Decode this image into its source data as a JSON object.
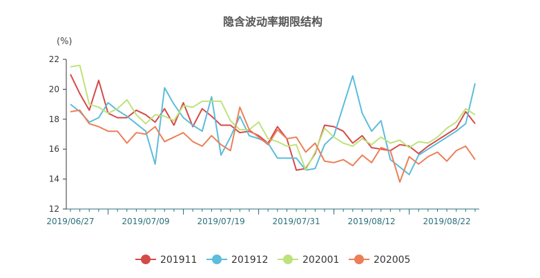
{
  "chart_data": {
    "type": "line",
    "title": "隐含波动率期限结构",
    "y_unit": "(%)",
    "ylim": [
      12,
      22
    ],
    "y_ticks": [
      12,
      14,
      16,
      18,
      20,
      22
    ],
    "grid": false,
    "legend_position": "bottom-center",
    "x_tick_labels": [
      {
        "label": "2019/06/27",
        "index": 0
      },
      {
        "label": "2019/07/09",
        "index": 8
      },
      {
        "label": "2019/07/19",
        "index": 16
      },
      {
        "label": "2019/07/31",
        "index": 24
      },
      {
        "label": "2019/08/12",
        "index": 32
      },
      {
        "label": "2019/08/22",
        "index": 40
      }
    ],
    "x": [
      "2019/06/27",
      "2019/06/28",
      "2019/07/01",
      "2019/07/02",
      "2019/07/03",
      "2019/07/04",
      "2019/07/05",
      "2019/07/08",
      "2019/07/09",
      "2019/07/10",
      "2019/07/11",
      "2019/07/12",
      "2019/07/15",
      "2019/07/16",
      "2019/07/17",
      "2019/07/18",
      "2019/07/19",
      "2019/07/22",
      "2019/07/23",
      "2019/07/24",
      "2019/07/25",
      "2019/07/26",
      "2019/07/29",
      "2019/07/30",
      "2019/07/31",
      "2019/08/01",
      "2019/08/02",
      "2019/08/05",
      "2019/08/06",
      "2019/08/07",
      "2019/08/08",
      "2019/08/09",
      "2019/08/12",
      "2019/08/13",
      "2019/08/14",
      "2019/08/15",
      "2019/08/16",
      "2019/08/19",
      "2019/08/20",
      "2019/08/21",
      "2019/08/22",
      "2019/08/23",
      "2019/08/26",
      "2019/08/27"
    ],
    "series": [
      {
        "name": "201911",
        "color": "#d34a48",
        "values": [
          21.0,
          19.7,
          18.6,
          20.6,
          18.4,
          18.1,
          18.1,
          18.6,
          18.3,
          17.8,
          18.7,
          17.6,
          19.1,
          17.5,
          18.7,
          18.2,
          17.6,
          17.6,
          17.1,
          17.2,
          16.9,
          16.4,
          17.5,
          16.7,
          14.6,
          14.7,
          15.7,
          17.6,
          17.5,
          17.2,
          16.4,
          16.9,
          16.1,
          16.0,
          15.9,
          16.3,
          16.2,
          15.7,
          16.2,
          16.6,
          17.0,
          17.4,
          18.5,
          17.7
        ]
      },
      {
        "name": "201912",
        "color": "#5bbcdb",
        "values": [
          19.0,
          18.5,
          17.8,
          18.1,
          19.1,
          18.6,
          18.2,
          17.7,
          17.2,
          15.0,
          20.1,
          19.0,
          18.1,
          17.6,
          17.2,
          19.5,
          15.6,
          16.8,
          18.2,
          16.9,
          16.7,
          16.4,
          15.4,
          15.4,
          15.4,
          14.6,
          14.7,
          16.3,
          16.9,
          18.9,
          20.9,
          18.4,
          17.2,
          17.9,
          15.3,
          14.8,
          14.3,
          15.6,
          16.0,
          16.4,
          16.8,
          17.2,
          17.7,
          20.4
        ]
      },
      {
        "name": "202001",
        "color": "#bde27a",
        "values": [
          21.5,
          21.6,
          19.0,
          18.8,
          18.4,
          18.7,
          19.3,
          18.3,
          17.7,
          18.3,
          18.2,
          17.9,
          18.9,
          18.8,
          19.2,
          19.2,
          19.2,
          17.9,
          17.3,
          17.3,
          17.8,
          16.7,
          16.5,
          16.2,
          16.3,
          14.6,
          15.8,
          17.4,
          16.8,
          16.4,
          16.2,
          16.7,
          16.3,
          16.8,
          16.4,
          16.6,
          16.1,
          16.5,
          16.4,
          16.8,
          17.4,
          17.8,
          18.7,
          18.3
        ]
      },
      {
        "name": "202005",
        "color": "#ec7e57",
        "values": [
          18.5,
          18.6,
          17.7,
          17.5,
          17.2,
          17.2,
          16.4,
          17.1,
          17.0,
          17.5,
          16.5,
          16.8,
          17.1,
          16.5,
          16.2,
          16.9,
          16.3,
          15.9,
          18.8,
          17.3,
          16.8,
          16.3,
          17.3,
          16.7,
          16.8,
          15.8,
          16.4,
          15.2,
          15.1,
          15.3,
          14.9,
          15.6,
          15.1,
          16.1,
          15.9,
          13.8,
          15.5,
          15.0,
          15.5,
          15.8,
          15.2,
          15.9,
          16.2,
          15.3
        ]
      }
    ]
  }
}
